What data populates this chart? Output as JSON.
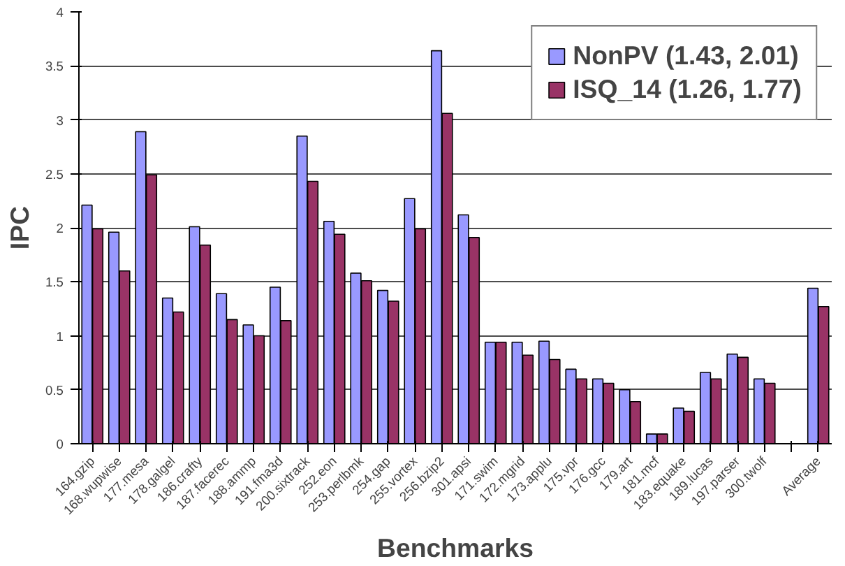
{
  "chart_data": {
    "type": "bar",
    "xlabel": "Benchmarks",
    "ylabel": "IPC",
    "categories": [
      "164.gzip",
      "168.wupwise",
      "177.mesa",
      "178.galgel",
      "186.crafty",
      "187.facerec",
      "188.ammp",
      "191.fma3d",
      "200.sixtrack",
      "252.eon",
      "253.perlbmk",
      "254.gap",
      "255.vortex",
      "256.bzip2",
      "301.apsi",
      "171.swim",
      "172.mgrid",
      "173.applu",
      "175.vpr",
      "176.gcc",
      "179.art",
      "181.mcf",
      "183.equake",
      "189.lucas",
      "197.parser",
      "300.twolf",
      null,
      "Average"
    ],
    "series": [
      {
        "name": "NonPV (1.43, 2.01)",
        "color": "#9999ff",
        "values": [
          2.21,
          1.96,
          2.89,
          1.35,
          2.01,
          1.39,
          1.1,
          1.45,
          2.85,
          2.06,
          1.58,
          1.42,
          2.27,
          3.64,
          2.12,
          0.94,
          0.94,
          0.95,
          0.69,
          0.6,
          0.5,
          0.09,
          0.33,
          0.66,
          0.83,
          0.6,
          null,
          1.44
        ]
      },
      {
        "name": "ISQ_14 (1.26, 1.77)",
        "color": "#993366",
        "values": [
          1.99,
          1.6,
          2.49,
          1.22,
          1.84,
          1.15,
          1.0,
          1.14,
          2.43,
          1.94,
          1.51,
          1.32,
          1.99,
          3.06,
          1.91,
          0.94,
          0.82,
          0.78,
          0.6,
          0.56,
          0.39,
          0.09,
          0.3,
          0.6,
          0.8,
          0.56,
          null,
          1.27
        ]
      }
    ],
    "ylim": [
      0,
      4
    ],
    "yticks": [
      0,
      0.5,
      1,
      1.5,
      2,
      2.5,
      3,
      3.5,
      4
    ],
    "grid": "y",
    "legend": "top right"
  }
}
